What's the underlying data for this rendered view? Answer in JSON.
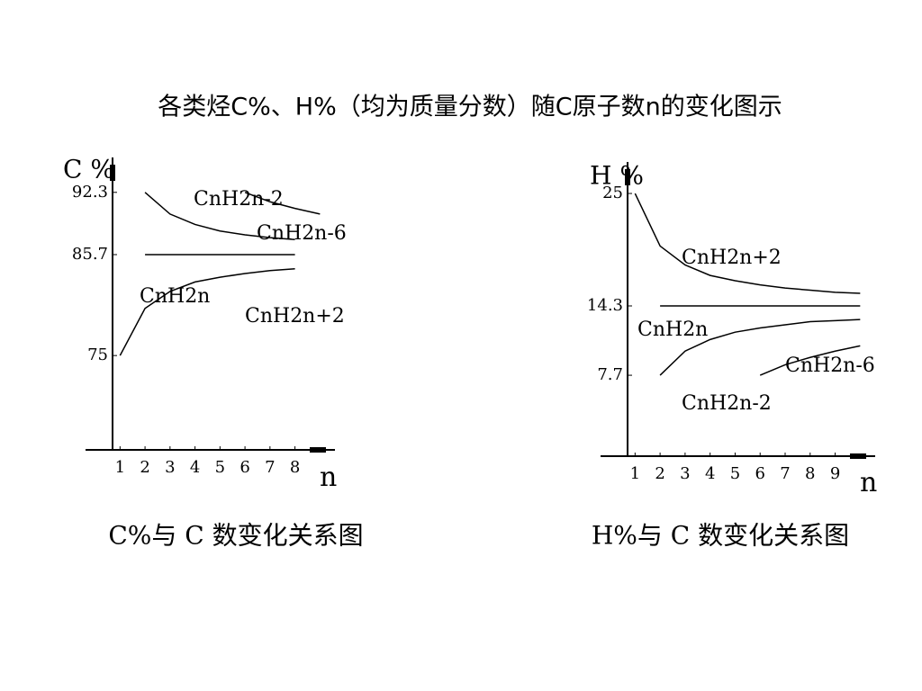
{
  "title": "各类烃C%、H%（均为质量分数）随C原子数n的变化图示",
  "chart_data": [
    {
      "type": "line",
      "title": "C%与 C 数变化关系图",
      "y_label": "C %",
      "x_label": "n",
      "x": [
        1,
        2,
        3,
        4,
        5,
        6,
        7,
        8,
        9
      ],
      "series": [
        {
          "name": "CnH2n-2",
          "color": "#000000",
          "values": [
            null,
            92.3,
            90,
            88.9,
            88.2,
            87.8,
            87.5,
            87.3,
            null
          ]
        },
        {
          "name": "CnH2n-6",
          "color": "#000000",
          "values": [
            null,
            null,
            null,
            null,
            null,
            92.3,
            91.3,
            90.6,
            90
          ]
        },
        {
          "name": "CnH2n",
          "color": "#000000",
          "values": [
            null,
            85.7,
            85.7,
            85.7,
            85.7,
            85.7,
            85.7,
            85.7,
            null
          ]
        },
        {
          "name": "CnH2n+2",
          "color": "#000000",
          "values": [
            75,
            80,
            81.8,
            82.8,
            83.3,
            83.7,
            84,
            84.2,
            null
          ]
        }
      ],
      "xlim": [
        0.7,
        9.6
      ],
      "xticks": [
        1,
        2,
        3,
        4,
        5,
        6,
        7,
        8
      ],
      "ylim": [
        65,
        96
      ],
      "yticks": [
        75,
        85.7,
        92.3
      ],
      "grid": false
    },
    {
      "type": "line",
      "title": "H%与 C 数变化关系图",
      "y_label": "H %",
      "x_label": "n",
      "x": [
        1,
        2,
        3,
        4,
        5,
        6,
        7,
        8,
        9,
        10
      ],
      "series": [
        {
          "name": "CnH2n+2",
          "color": "#000000",
          "values": [
            25,
            20,
            18.2,
            17.2,
            16.7,
            16.3,
            16,
            15.8,
            15.6,
            15.5
          ]
        },
        {
          "name": "CnH2n",
          "color": "#000000",
          "values": [
            null,
            14.3,
            14.3,
            14.3,
            14.3,
            14.3,
            14.3,
            14.3,
            14.3,
            14.3
          ]
        },
        {
          "name": "CnH2n-6",
          "color": "#000000",
          "values": [
            null,
            null,
            null,
            null,
            null,
            7.7,
            8.7,
            9.4,
            10,
            10.5
          ]
        },
        {
          "name": "CnH2n-2",
          "color": "#000000",
          "values": [
            null,
            7.7,
            10,
            11.1,
            11.8,
            12.2,
            12.5,
            12.8,
            12.9,
            13
          ]
        }
      ],
      "xlim": [
        0.7,
        10.6
      ],
      "xticks": [
        1,
        2,
        3,
        4,
        5,
        6,
        7,
        8,
        9
      ],
      "ylim": [
        0,
        28
      ],
      "yticks": [
        7.7,
        14.3,
        25
      ],
      "grid": false
    }
  ]
}
